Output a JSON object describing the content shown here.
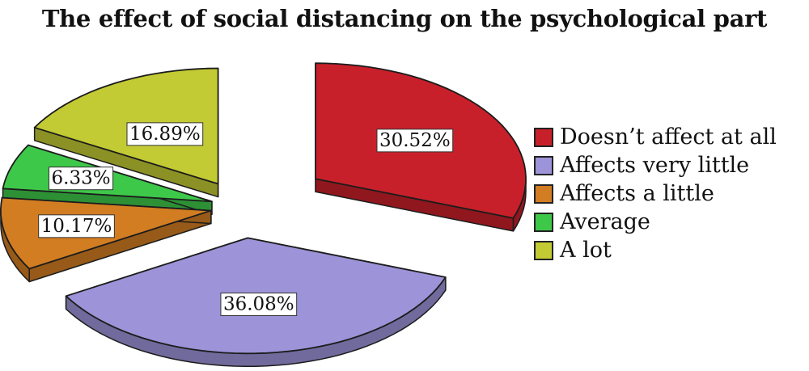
{
  "chart_data": {
    "type": "pie",
    "style": "3d-exploded",
    "title": "The effect of social distancing on the psychological part",
    "legend_position": "right",
    "slices": [
      {
        "label": "Doesn’t affect at all",
        "value": 30.52,
        "display": "30.52%",
        "color": "#c8202a"
      },
      {
        "label": "Affects very little",
        "value": 36.08,
        "display": "36.08%",
        "color": "#9d93d8"
      },
      {
        "label": "Affects a little",
        "value": 10.17,
        "display": "10.17%",
        "color": "#d27d22"
      },
      {
        "label": "Average",
        "value": 6.33,
        "display": "6.33%",
        "color": "#3ec84a"
      },
      {
        "label": "A lot",
        "value": 16.89,
        "display": "16.89%",
        "color": "#c2ca34"
      }
    ]
  }
}
